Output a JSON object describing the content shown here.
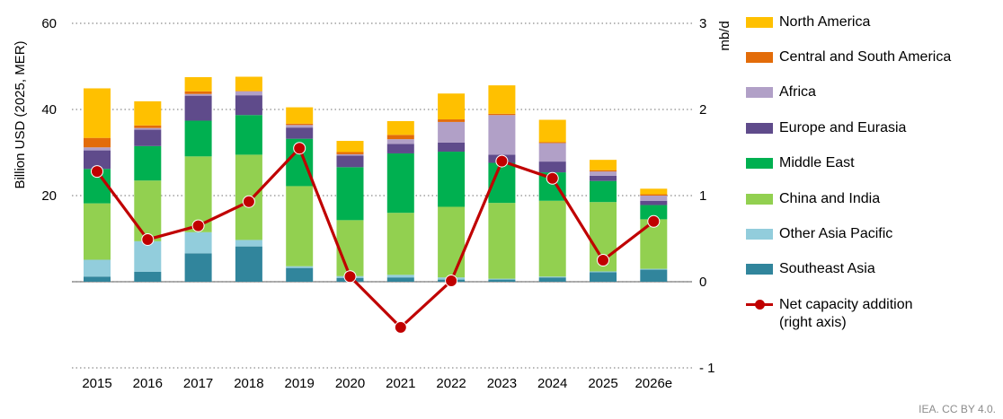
{
  "chart_data": {
    "type": "bar",
    "stacked": true,
    "categories": [
      "2015",
      "2016",
      "2017",
      "2018",
      "2019",
      "2020",
      "2021",
      "2022",
      "2023",
      "2024",
      "2025",
      "2026e"
    ],
    "series": [
      {
        "name": "Southeast Asia",
        "color": "#31859C",
        "values": [
          1.2,
          2.3,
          6.6,
          8.2,
          3.2,
          0.9,
          1.0,
          0.5,
          0.5,
          1.0,
          2.2,
          2.8
        ]
      },
      {
        "name": "Other Asia Pacific",
        "color": "#92CDDC",
        "values": [
          3.9,
          7.1,
          4.9,
          1.5,
          0.4,
          0.4,
          0.6,
          0.5,
          0.2,
          0.2,
          0.2,
          0.2
        ]
      },
      {
        "name": "China and India",
        "color": "#92D050",
        "values": [
          13.1,
          14.1,
          17.6,
          19.8,
          18.6,
          13.0,
          14.4,
          16.4,
          17.6,
          17.6,
          16.1,
          11.5
        ]
      },
      {
        "name": "Middle East",
        "color": "#00B050",
        "values": [
          8.0,
          8.0,
          8.3,
          9.2,
          11.0,
          12.3,
          13.8,
          12.8,
          9.3,
          6.6,
          4.9,
          3.3
        ]
      },
      {
        "name": "Europe and Eurasia",
        "color": "#5F4B8B",
        "values": [
          4.3,
          3.8,
          5.8,
          4.6,
          2.6,
          2.7,
          2.2,
          2.1,
          1.9,
          2.5,
          1.2,
          1.0
        ]
      },
      {
        "name": "Africa",
        "color": "#B1A0C7",
        "values": [
          0.7,
          0.4,
          0.4,
          0.9,
          0.6,
          0.3,
          1.1,
          4.8,
          9.2,
          4.3,
          1.0,
          1.2
        ]
      },
      {
        "name": "Central and South America",
        "color": "#E36C09",
        "values": [
          2.2,
          0.6,
          0.6,
          0.1,
          0.3,
          0.5,
          1.0,
          0.6,
          0.3,
          0.2,
          0.3,
          0.3
        ]
      },
      {
        "name": "North America",
        "color": "#FFC000",
        "values": [
          11.5,
          5.6,
          3.3,
          3.3,
          3.8,
          2.6,
          3.2,
          6.0,
          6.6,
          5.2,
          2.4,
          1.3
        ]
      }
    ],
    "line_series": {
      "name": "Net capacity addition (right axis)",
      "label_lines": [
        "Net capacity addition",
        "(right axis)"
      ],
      "color": "#C00000",
      "axis": "right",
      "values": [
        1.28,
        0.49,
        0.65,
        0.93,
        1.55,
        0.06,
        -0.53,
        0.01,
        1.4,
        1.2,
        0.25,
        0.7
      ]
    },
    "left_axis": {
      "label": "Billion USD (2025, MER)",
      "ticks": [
        "60",
        "40",
        "20",
        ""
      ],
      "min": -20,
      "max": 60
    },
    "right_axis": {
      "label": "mb/d",
      "ticks": [
        "3",
        "2",
        "1",
        "0",
        "- 1"
      ],
      "min": -1,
      "max": 3
    },
    "grid": "dotted"
  },
  "legend": {
    "items": [
      {
        "label": "North America",
        "color": "#FFC000"
      },
      {
        "label": "Central and South America",
        "color": "#E36C09"
      },
      {
        "label": "Africa",
        "color": "#B1A0C7"
      },
      {
        "label": "Europe and Eurasia",
        "color": "#5F4B8B"
      },
      {
        "label": "Middle East",
        "color": "#00B050"
      },
      {
        "label": "China and India",
        "color": "#92D050"
      },
      {
        "label": "Other Asia Pacific",
        "color": "#92CDDC"
      },
      {
        "label": "Southeast Asia",
        "color": "#31859C"
      }
    ]
  },
  "credit": "IEA. CC BY 4.0."
}
